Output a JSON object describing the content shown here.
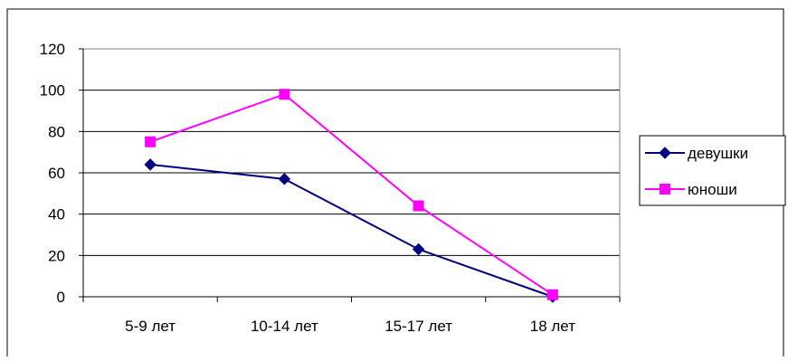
{
  "chart_data": {
    "type": "line",
    "title": "",
    "xlabel": "",
    "ylabel": "",
    "categories": [
      "5-9 лет",
      "10-14 лет",
      "15-17 лет",
      "18 лет"
    ],
    "ylim": [
      0,
      120
    ],
    "yticks": [
      0,
      20,
      40,
      60,
      80,
      100,
      120
    ],
    "grid": true,
    "legend_position": "right",
    "series": [
      {
        "name": "девушки",
        "values": [
          64,
          57,
          23,
          0
        ],
        "color": "#000080",
        "marker": "diamond"
      },
      {
        "name": "юноши",
        "values": [
          75,
          98,
          44,
          1
        ],
        "color": "#FF00FF",
        "marker": "square"
      }
    ]
  }
}
